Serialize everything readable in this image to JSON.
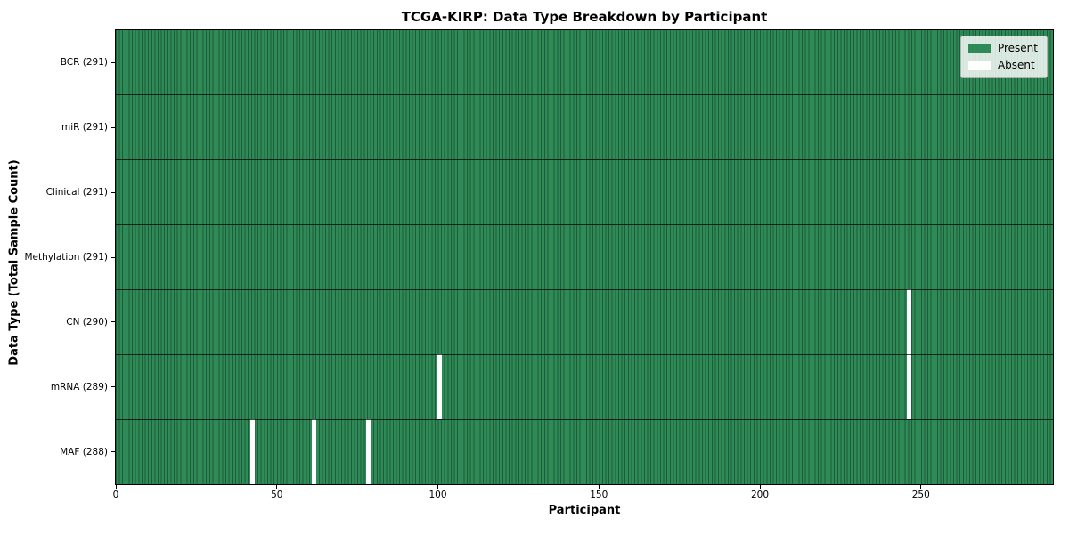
{
  "chart_data": {
    "type": "heatmap",
    "title": "TCGA-KIRP: Data Type Breakdown by Participant",
    "xlabel": "Participant",
    "ylabel": "Data Type (Total Sample Count)",
    "xlim": [
      0,
      291
    ],
    "x_ticks": [
      0,
      50,
      100,
      150,
      200,
      250
    ],
    "n_participants": 291,
    "grid": false,
    "rows": [
      {
        "data_type": "BCR",
        "label": "BCR (291)",
        "present_count": 291,
        "absent_participants": []
      },
      {
        "data_type": "miR",
        "label": "miR (291)",
        "present_count": 291,
        "absent_participants": []
      },
      {
        "data_type": "Clinical",
        "label": "Clinical (291)",
        "present_count": 291,
        "absent_participants": []
      },
      {
        "data_type": "Methylation",
        "label": "Methylation (291)",
        "present_count": 291,
        "absent_participants": []
      },
      {
        "data_type": "CN",
        "label": "CN (290)",
        "present_count": 290,
        "absent_participants": [
          246
        ]
      },
      {
        "data_type": "mRNA",
        "label": "mRNA (289)",
        "present_count": 289,
        "absent_participants": [
          100,
          246
        ]
      },
      {
        "data_type": "MAF",
        "label": "MAF (288)",
        "present_count": 288,
        "absent_participants": [
          42,
          61,
          78
        ]
      }
    ],
    "legend": {
      "position": "upper-right",
      "entries": [
        {
          "name": "present",
          "label": "Present",
          "color": "#2e8b57"
        },
        {
          "name": "absent",
          "label": "Absent",
          "color": "#ffffff"
        }
      ]
    },
    "colors": {
      "present": "#2e8b57",
      "absent": "#ffffff",
      "cell_edge": "#1e5b3a",
      "row_divider_rgba": "rgba(0,0,0,0.72)",
      "axis": "#000000",
      "background": "#ffffff"
    }
  }
}
